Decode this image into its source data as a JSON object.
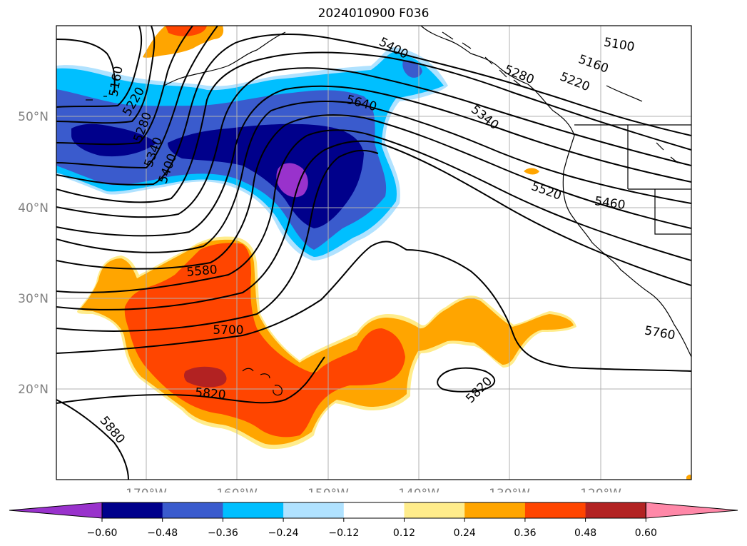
{
  "title": "2024010900 F036",
  "lat_labels": [
    "50°N",
    "40°N",
    "30°N",
    "20°N"
  ],
  "lon_labels": [
    "170°W",
    "160°W",
    "150°W",
    "140°W",
    "130°W",
    "120°W"
  ],
  "contour_labels": [
    "5100",
    "5160",
    "5220",
    "5280",
    "5340",
    "5400",
    "5460",
    "5520",
    "5580",
    "5640",
    "5700",
    "5760",
    "5820",
    "5880"
  ],
  "colorbar": {
    "ticks": [
      "−0.60",
      "−0.48",
      "−0.36",
      "−0.24",
      "−0.12",
      "0.12",
      "0.24",
      "0.36",
      "0.48",
      "0.60"
    ],
    "colors": [
      "#9932cc",
      "#00008b",
      "#3a5bcd",
      "#00bfff",
      "#b0e2ff",
      "#ffffff",
      "#ffec8b",
      "#ffa500",
      "#ff4500",
      "#b22222",
      "#ff88a8"
    ]
  },
  "colors": {
    "contour": "#000000",
    "grid": "#b0b0b0",
    "coast": "#000000"
  }
}
